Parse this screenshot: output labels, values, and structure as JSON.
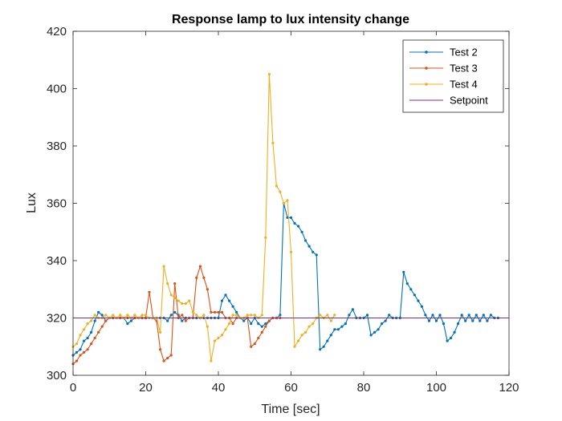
{
  "chart_data": {
    "type": "line",
    "title": "Response lamp to lux intensity change",
    "xlabel": "Time [sec]",
    "ylabel": "Lux",
    "xlim": [
      0,
      120
    ],
    "ylim": [
      300,
      420
    ],
    "xticks": [
      "0",
      "20",
      "40",
      "60",
      "80",
      "100",
      "120"
    ],
    "yticks": [
      "300",
      "320",
      "340",
      "360",
      "380",
      "400",
      "420"
    ],
    "grid": false,
    "legend_position": "top-right",
    "series": [
      {
        "name": "Test 2",
        "color": "#0072BD",
        "marker": true,
        "points": [
          [
            0,
            307
          ],
          [
            1,
            308
          ],
          [
            2,
            309
          ],
          [
            3,
            312
          ],
          [
            4,
            313
          ],
          [
            5,
            315
          ],
          [
            6,
            319
          ],
          [
            7,
            322
          ],
          [
            8,
            321
          ],
          [
            9,
            319
          ],
          [
            10,
            320
          ],
          [
            11,
            320
          ],
          [
            12,
            320
          ],
          [
            13,
            320
          ],
          [
            14,
            320
          ],
          [
            15,
            318
          ],
          [
            16,
            319
          ],
          [
            17,
            320
          ],
          [
            18,
            320
          ],
          [
            19,
            320
          ],
          [
            20,
            320
          ],
          [
            21,
            320
          ],
          [
            22,
            320
          ],
          [
            23,
            320
          ],
          [
            24,
            320
          ],
          [
            25,
            320
          ],
          [
            26,
            319
          ],
          [
            27,
            321
          ],
          [
            28,
            322
          ],
          [
            29,
            321
          ],
          [
            30,
            319
          ],
          [
            31,
            320
          ],
          [
            32,
            320
          ],
          [
            33,
            320
          ],
          [
            34,
            320
          ],
          [
            35,
            320
          ],
          [
            36,
            320
          ],
          [
            37,
            320
          ],
          [
            38,
            320
          ],
          [
            39,
            320
          ],
          [
            40,
            320
          ],
          [
            41,
            326
          ],
          [
            42,
            328
          ],
          [
            43,
            326
          ],
          [
            44,
            324
          ],
          [
            45,
            322
          ],
          [
            46,
            320
          ],
          [
            47,
            319
          ],
          [
            48,
            320
          ],
          [
            49,
            318
          ],
          [
            50,
            320
          ],
          [
            51,
            318
          ],
          [
            52,
            317
          ],
          [
            53,
            318
          ],
          [
            54,
            319
          ],
          [
            55,
            320
          ],
          [
            56,
            320
          ],
          [
            57,
            321
          ],
          [
            58,
            360
          ],
          [
            59,
            355
          ],
          [
            60,
            355
          ],
          [
            61,
            353
          ],
          [
            62,
            352
          ],
          [
            63,
            350
          ],
          [
            64,
            347
          ],
          [
            65,
            345
          ],
          [
            66,
            343
          ],
          [
            67,
            342
          ],
          [
            68,
            309
          ],
          [
            69,
            310
          ],
          [
            70,
            312
          ],
          [
            71,
            314
          ],
          [
            72,
            316
          ],
          [
            73,
            316
          ],
          [
            74,
            317
          ],
          [
            75,
            318
          ],
          [
            76,
            321
          ],
          [
            77,
            323
          ],
          [
            78,
            320
          ],
          [
            79,
            320
          ],
          [
            80,
            320
          ],
          [
            81,
            321
          ],
          [
            82,
            314
          ],
          [
            83,
            315
          ],
          [
            84,
            316
          ],
          [
            85,
            318
          ],
          [
            86,
            319
          ],
          [
            87,
            321
          ],
          [
            88,
            320
          ],
          [
            89,
            320
          ],
          [
            90,
            320
          ],
          [
            91,
            336
          ],
          [
            92,
            332
          ],
          [
            93,
            330
          ],
          [
            94,
            328
          ],
          [
            95,
            326
          ],
          [
            96,
            324
          ],
          [
            97,
            321
          ],
          [
            98,
            319
          ],
          [
            99,
            321
          ],
          [
            100,
            319
          ],
          [
            101,
            321
          ],
          [
            102,
            318
          ],
          [
            103,
            312
          ],
          [
            104,
            313
          ],
          [
            105,
            315
          ],
          [
            106,
            318
          ],
          [
            107,
            321
          ],
          [
            108,
            319
          ],
          [
            109,
            321
          ],
          [
            110,
            319
          ],
          [
            111,
            321
          ],
          [
            112,
            319
          ],
          [
            113,
            321
          ],
          [
            114,
            319
          ],
          [
            115,
            321
          ],
          [
            116,
            320
          ],
          [
            117,
            320
          ]
        ]
      },
      {
        "name": "Test 3",
        "color": "#D95319",
        "marker": true,
        "points": [
          [
            0,
            304
          ],
          [
            1,
            305
          ],
          [
            2,
            307
          ],
          [
            3,
            308
          ],
          [
            4,
            309
          ],
          [
            5,
            311
          ],
          [
            6,
            313
          ],
          [
            7,
            315
          ],
          [
            8,
            317
          ],
          [
            9,
            319
          ],
          [
            10,
            320
          ],
          [
            11,
            320
          ],
          [
            12,
            320
          ],
          [
            13,
            320
          ],
          [
            14,
            320
          ],
          [
            15,
            320
          ],
          [
            16,
            320
          ],
          [
            17,
            320
          ],
          [
            18,
            320
          ],
          [
            19,
            320
          ],
          [
            20,
            320
          ],
          [
            21,
            329
          ],
          [
            22,
            320
          ],
          [
            23,
            319
          ],
          [
            24,
            309
          ],
          [
            25,
            305
          ],
          [
            26,
            306
          ],
          [
            27,
            307
          ],
          [
            28,
            332
          ],
          [
            29,
            320
          ],
          [
            30,
            321
          ],
          [
            31,
            319
          ],
          [
            32,
            320
          ],
          [
            33,
            320
          ],
          [
            34,
            334
          ],
          [
            35,
            338
          ],
          [
            36,
            334
          ],
          [
            37,
            330
          ],
          [
            38,
            322
          ],
          [
            39,
            322
          ],
          [
            40,
            322
          ],
          [
            41,
            322
          ],
          [
            42,
            320
          ],
          [
            43,
            320
          ],
          [
            44,
            318
          ],
          [
            45,
            320
          ],
          [
            46,
            320
          ],
          [
            47,
            320
          ],
          [
            48,
            320
          ],
          [
            49,
            310
          ],
          [
            50,
            311
          ],
          [
            51,
            313
          ],
          [
            52,
            315
          ],
          [
            53,
            317
          ],
          [
            54,
            319
          ],
          [
            55,
            320
          ],
          [
            56,
            320
          ],
          [
            57,
            320
          ]
        ]
      },
      {
        "name": "Test 4",
        "color": "#EDB120",
        "marker": true,
        "points": [
          [
            0,
            310
          ],
          [
            1,
            311
          ],
          [
            2,
            314
          ],
          [
            3,
            316
          ],
          [
            4,
            318
          ],
          [
            5,
            319
          ],
          [
            6,
            321
          ],
          [
            7,
            320
          ],
          [
            8,
            320
          ],
          [
            9,
            321
          ],
          [
            10,
            320
          ],
          [
            11,
            321
          ],
          [
            12,
            320
          ],
          [
            13,
            321
          ],
          [
            14,
            320
          ],
          [
            15,
            321
          ],
          [
            16,
            320
          ],
          [
            17,
            321
          ],
          [
            18,
            320
          ],
          [
            19,
            321
          ],
          [
            20,
            321
          ],
          [
            21,
            320
          ],
          [
            22,
            320
          ],
          [
            23,
            320
          ],
          [
            24,
            315
          ],
          [
            25,
            338
          ],
          [
            26,
            332
          ],
          [
            27,
            328
          ],
          [
            28,
            327
          ],
          [
            29,
            326
          ],
          [
            30,
            325
          ],
          [
            31,
            325
          ],
          [
            32,
            326
          ],
          [
            33,
            322
          ],
          [
            34,
            321
          ],
          [
            35,
            320
          ],
          [
            36,
            321
          ],
          [
            37,
            317
          ],
          [
            38,
            305
          ],
          [
            39,
            312
          ],
          [
            40,
            313
          ],
          [
            41,
            314
          ],
          [
            42,
            316
          ],
          [
            43,
            318
          ],
          [
            44,
            321
          ],
          [
            45,
            321
          ],
          [
            46,
            320
          ],
          [
            47,
            320
          ],
          [
            48,
            321
          ],
          [
            49,
            321
          ],
          [
            50,
            321
          ],
          [
            51,
            320
          ],
          [
            52,
            321
          ],
          [
            53,
            348
          ],
          [
            54,
            405
          ],
          [
            55,
            381
          ],
          [
            56,
            366
          ],
          [
            57,
            364
          ],
          [
            58,
            360
          ],
          [
            59,
            361
          ],
          [
            60,
            343
          ],
          [
            61,
            310
          ],
          [
            62,
            312
          ],
          [
            63,
            314
          ],
          [
            64,
            315
          ],
          [
            65,
            317
          ],
          [
            66,
            318
          ],
          [
            67,
            320
          ],
          [
            68,
            321
          ],
          [
            69,
            320
          ],
          [
            70,
            321
          ],
          [
            71,
            319
          ],
          [
            72,
            321
          ]
        ]
      },
      {
        "name": "Setpoint",
        "color": "#7E2F8E",
        "marker": false,
        "points": [
          [
            0,
            320
          ],
          [
            120,
            320
          ]
        ]
      }
    ]
  }
}
